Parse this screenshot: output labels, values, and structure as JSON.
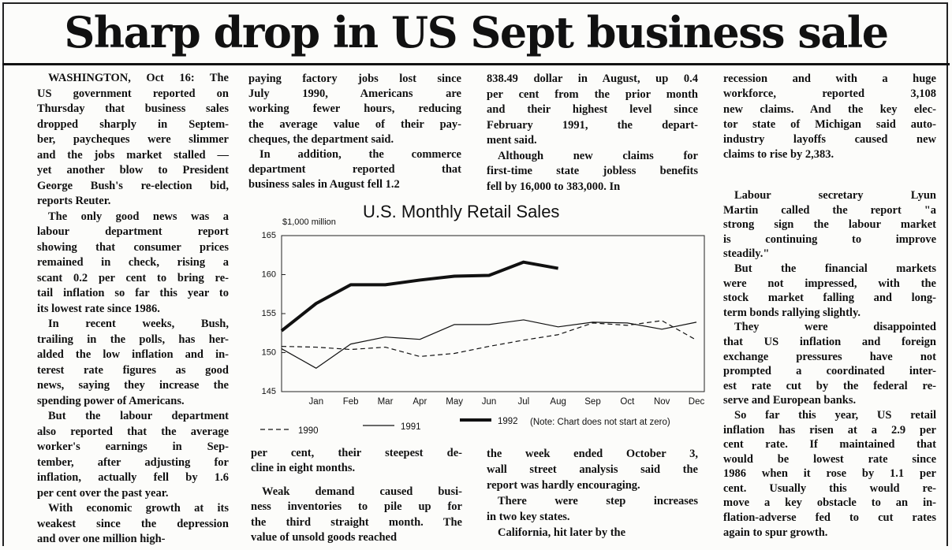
{
  "headline": "Sharp drop in US Sept business sale",
  "blocks": [
    [
      [
        "WASHINGTON, Oct 16: The",
        "US government reported on",
        "Thursday that business sales",
        "dropped sharply in Septem-",
        "ber, paycheques were slimmer",
        "and the jobs market stalled —",
        "yet another blow to President",
        "George Bush's re-election bid,",
        "reports Reuter."
      ],
      [
        "The only good news was a",
        "labour department report",
        "showing that consumer prices",
        "remained in check, rising a",
        "scant 0.2 per cent to bring re-",
        "tail inflation so far this year to",
        "its lowest rate since 1986."
      ],
      [
        "In recent weeks, Bush,",
        "trailing in the polls, has her-",
        "alded the low inflation and in-",
        "terest rate figures as good",
        "news, saying they increase the",
        "spending power of Americans."
      ],
      [
        "But the labour department",
        "also reported that the average",
        "worker's earnings in Sep-",
        "tember, after adjusting for",
        "inflation, actually fell by 1.6",
        "per cent over the past year."
      ],
      [
        "With economic growth at its",
        "weakest since the depression",
        "and over one million high-"
      ]
    ],
    [
      [
        "paying factory jobs lost since",
        "July 1990, Americans are",
        "working fewer hours, reducing",
        "the average value of their pay-",
        "cheques, the department said."
      ],
      [
        "In addition, the commerce",
        "department reported that",
        "business sales in August fell 1.2"
      ]
    ],
    [
      [
        "per cent, their steepest de-",
        "cline in eight months."
      ]
    ],
    [
      [
        "Weak demand caused busi-",
        "ness inventories to pile up for",
        "the third straight month. The",
        "value of unsold goods reached"
      ]
    ],
    [
      [
        "838.49 dollar in August, up 0.4",
        "per cent from the prior month",
        "and their highest level since",
        "February 1991, the depart-",
        "ment said."
      ],
      [
        "Although new claims for",
        "first-time state jobless benefits",
        "fell by 16,000 to 383,000. In"
      ]
    ],
    [
      [
        "the week ended October 3,",
        "wall street analysis said the",
        "report was hardly encouraging."
      ],
      [
        "There were step increases",
        "in two key states."
      ],
      [
        "California, hit later by the"
      ]
    ],
    [
      [
        "recession and with a huge",
        "workforce, reported 3,108",
        "new claims. And the key elec-",
        "tor state of Michigan said auto-",
        "industry layoffs caused new",
        "claims to rise by 2,383."
      ]
    ],
    [
      [
        "Labour secretary Lyun",
        "Martin called the report \"a",
        "strong sign the labour market",
        "is continuing to improve",
        "steadily.\""
      ],
      [
        "But the financial markets",
        "were not impressed, with the",
        "stock market falling and long-",
        "term bonds rallying slightly."
      ],
      [
        "They were disappointed",
        "that US inflation and foreign",
        "exchange pressures have not",
        "prompted a coordinated inter-",
        "est rate cut by the federal re-",
        "serve and European banks."
      ],
      [
        "So far this year, US retail",
        "inflation has risen at a 2.9 per",
        "cent rate. If maintained that",
        "would be lowest rate since",
        "1986 when it rose by 1.1 per",
        "cent. Usually this would re-",
        "move a key obstacle to an in-",
        "flation-adverse fed to cut rates",
        "again to spur growth."
      ]
    ]
  ],
  "chart_data": {
    "type": "line",
    "title": "U.S. Monthly Retail Sales",
    "y_label": "$1,000 million",
    "note": "(Note: Chart does not start at zero)",
    "categories": [
      null,
      "Jan",
      "Feb",
      "Mar",
      "Apr",
      "May",
      "Jun",
      "Jul",
      "Aug",
      "Sep",
      "Oct",
      "Nov",
      "Dec"
    ],
    "ylim": [
      145,
      165
    ],
    "yticks": [
      145,
      150,
      155,
      160,
      165
    ],
    "series": [
      {
        "name": "1990",
        "color": "#111111",
        "line_style": "dashed",
        "values": [
          150.8,
          150.7,
          150.4,
          150.7,
          149.5,
          149.9,
          150.8,
          151.6,
          152.3,
          153.8,
          153.5,
          154.1,
          151.6
        ]
      },
      {
        "name": "1991",
        "color": "#111111",
        "line_style": "solid",
        "values": [
          150.5,
          148.0,
          151.1,
          152.0,
          151.7,
          153.6,
          153.6,
          154.2,
          153.3,
          153.9,
          153.8,
          153.0,
          153.9
        ]
      },
      {
        "name": "1992",
        "color": "#111111",
        "line_style": "bold",
        "values": [
          152.8,
          156.3,
          158.7,
          158.7,
          159.3,
          159.8,
          159.9,
          161.6,
          160.8,
          null,
          null,
          null,
          null
        ]
      }
    ]
  }
}
